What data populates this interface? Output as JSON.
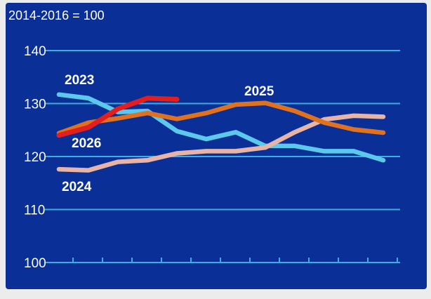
{
  "chart_data": {
    "type": "line",
    "subtitle": "2014-2016 = 100",
    "ylim": [
      100,
      140
    ],
    "yticks": [
      "140",
      "130",
      "120",
      "110",
      "100"
    ],
    "ytick_values": [
      140,
      130,
      120,
      110,
      100
    ],
    "x_count": 12,
    "grid": true,
    "legend": "inline labels",
    "series": [
      {
        "name": "2023",
        "color": "#5cc8ec",
        "values": [
          131.7,
          131.0,
          128.4,
          128.6,
          124.8,
          123.3,
          124.6,
          122.0,
          122.0,
          121.0,
          121.0,
          119.3
        ]
      },
      {
        "name": "2024",
        "color": "#e8b4a6",
        "values": [
          117.6,
          117.4,
          119.0,
          119.3,
          120.6,
          121.0,
          121.0,
          121.7,
          124.6,
          127.0,
          127.7,
          127.5
        ]
      },
      {
        "name": "2025",
        "color": "#e0711e",
        "values": [
          124.4,
          126.4,
          127.2,
          128.2,
          127.1,
          128.2,
          129.8,
          130.1,
          128.6,
          126.4,
          125.1,
          124.5
        ]
      },
      {
        "name": "2026",
        "color": "#e41e1e",
        "values": [
          124.0,
          125.5,
          129.0,
          131.0,
          130.8
        ]
      }
    ]
  }
}
